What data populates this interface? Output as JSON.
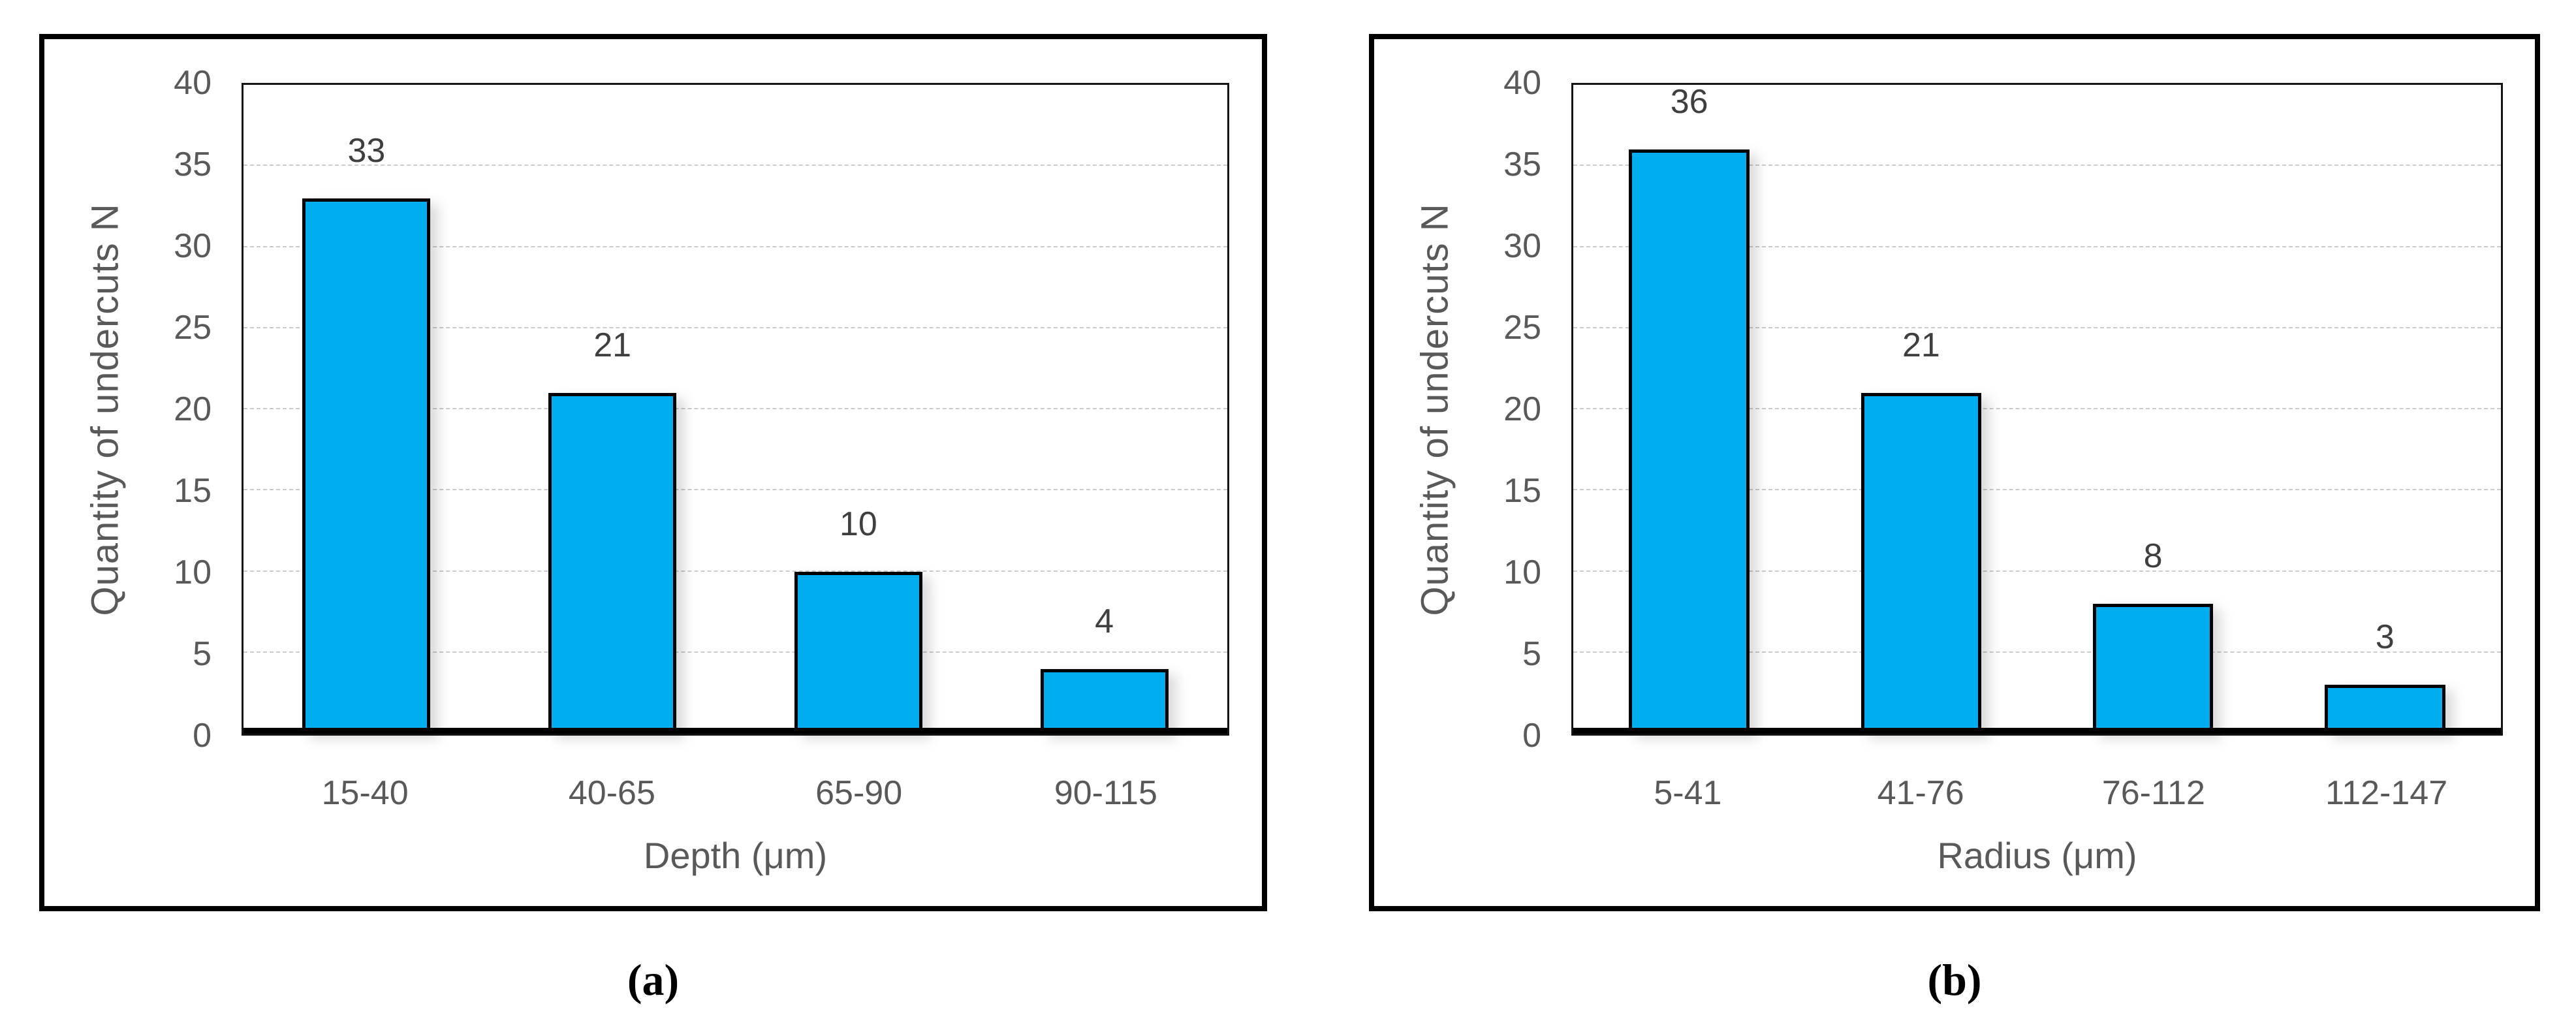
{
  "colors": {
    "bar_fill": "#00AEEF",
    "bar_border": "#000000",
    "gridline": "#CBCBCB",
    "axis_text": "#595959",
    "value_label": "#3F3F3F",
    "panel_border": "#000000",
    "caption_text": "#000000"
  },
  "chart_data": [
    {
      "type": "bar",
      "panel_label": "(a)",
      "title": "",
      "categories": [
        "15-40",
        "40-65",
        "65-90",
        "90-115"
      ],
      "values": [
        33,
        21,
        10,
        4
      ],
      "xlabel": "Depth (μm)",
      "ylabel": "Quantity of undercuts N",
      "ylim": [
        0,
        40
      ],
      "yticks": [
        0,
        5,
        10,
        15,
        20,
        25,
        30,
        35,
        40
      ],
      "grid": true,
      "legend_position": "none",
      "bar_color": "#00AEEF"
    },
    {
      "type": "bar",
      "panel_label": "(b)",
      "title": "",
      "categories": [
        "5-41",
        "41-76",
        "76-112",
        "112-147"
      ],
      "values": [
        36,
        21,
        8,
        3
      ],
      "xlabel": "Radius (μm)",
      "ylabel": "Quantity of undercuts N",
      "ylim": [
        0,
        40
      ],
      "yticks": [
        0,
        5,
        10,
        15,
        20,
        25,
        30,
        35,
        40
      ],
      "grid": true,
      "legend_position": "none",
      "bar_color": "#00AEEF"
    }
  ]
}
